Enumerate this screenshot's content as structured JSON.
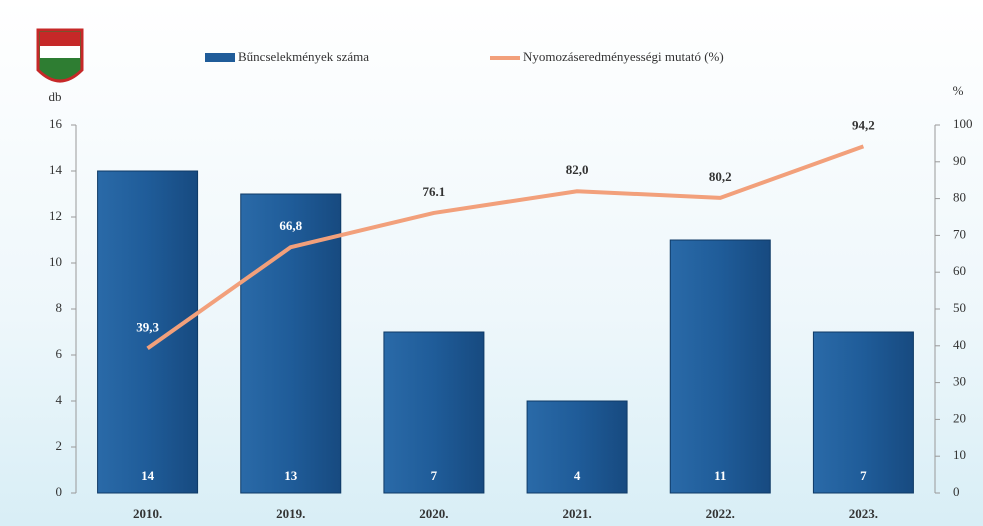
{
  "chart_data": {
    "type": "bar-line",
    "categories": [
      "2010.",
      "2019.",
      "2020.",
      "2021.",
      "2022.",
      "2023."
    ],
    "series": [
      {
        "name": "Bűncselekmények száma",
        "color": "#1f5c99",
        "type": "bar",
        "values": [
          14,
          13,
          7,
          4,
          11,
          7
        ]
      },
      {
        "name": "Nyomozáseredményességi mutató (%)",
        "color": "#f2a07b",
        "type": "line",
        "axis": "y2",
        "values": [
          39.3,
          66.8,
          76.1,
          82.0,
          80.2,
          94.2
        ],
        "value_labels": [
          "39,3",
          "66,8",
          "76.1",
          "82,0",
          "80,2",
          "94,2"
        ]
      }
    ],
    "y_label": "db",
    "y2_label": "%",
    "ylim": [
      0,
      16
    ],
    "yticks": [
      0,
      2,
      4,
      6,
      8,
      10,
      12,
      14,
      16
    ],
    "y2lim": [
      0,
      100
    ],
    "y2ticks": [
      0,
      10,
      20,
      30,
      40,
      50,
      60,
      70,
      80,
      90,
      100
    ]
  }
}
